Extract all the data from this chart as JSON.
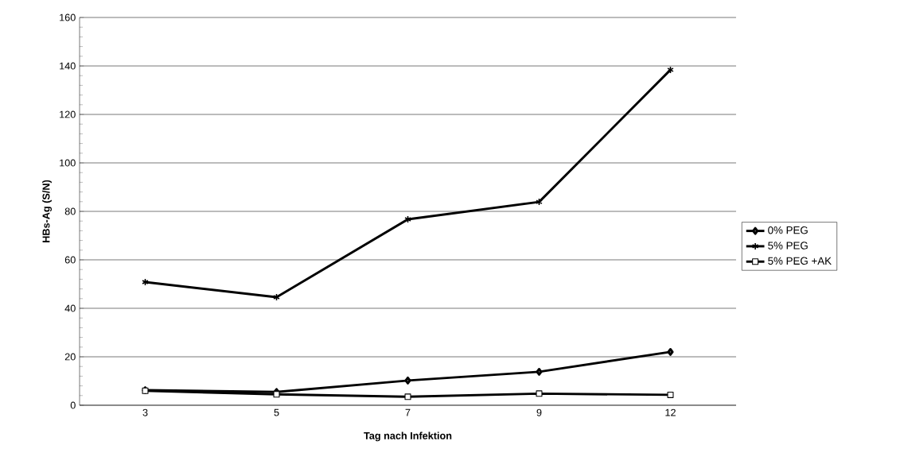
{
  "chart_data": {
    "type": "line",
    "xlabel": "Tag nach Infektion",
    "ylabel": "HBs-Ag (S/N)",
    "categories": [
      "3",
      "5",
      "7",
      "9",
      "12"
    ],
    "series": [
      {
        "name": "0% PEG",
        "color": "#000000",
        "marker": "diamond",
        "values": [
          6.2,
          5.5,
          10.2,
          13.8,
          22
        ]
      },
      {
        "name": "5% PEG",
        "color": "#000000",
        "marker": "cross",
        "values": [
          50.8,
          44.6,
          76.7,
          83.9,
          138.4
        ]
      },
      {
        "name": "5% PEG +AK",
        "color": "#000000",
        "marker": "square",
        "values": [
          6,
          4.5,
          3.5,
          4.8,
          4.3
        ]
      }
    ],
    "ylim": [
      0,
      160
    ],
    "yticks": [
      0,
      20,
      40,
      60,
      80,
      100,
      120,
      140,
      160
    ],
    "grid": "y",
    "legend": "right",
    "line_style": "solid"
  }
}
